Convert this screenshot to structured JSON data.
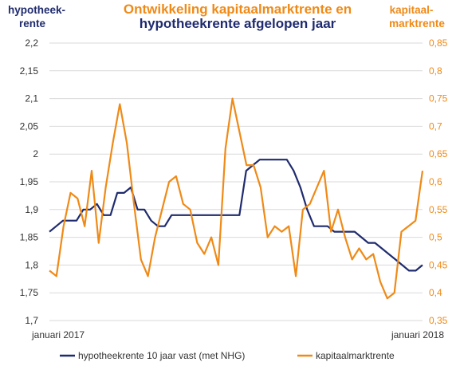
{
  "colors": {
    "navy": "#1f2b6e",
    "orange": "#ef8a17",
    "grid": "#d9d9d9",
    "text": "#333333"
  },
  "chart_data": {
    "type": "line",
    "title_line1": "Ontwikkeling kapitaalmarktrente en",
    "title_line2": "hypotheekrente afgelopen jaar",
    "left_axis_title": [
      "hypotheek-",
      "rente"
    ],
    "right_axis_title": [
      "kapitaal-",
      "marktrente"
    ],
    "x_labels": {
      "start": "januari 2017",
      "end": "januari 2018"
    },
    "x_range": [
      0,
      52
    ],
    "left_axis": {
      "ylim": [
        1.7,
        2.2
      ],
      "ticks": [
        1.7,
        1.75,
        1.8,
        1.85,
        1.9,
        1.95,
        2.0,
        2.05,
        2.1,
        2.15,
        2.2
      ],
      "tick_labels": [
        "1,7",
        "1,75",
        "1,8",
        "1,85",
        "1,9",
        "1,95",
        "2",
        "2,05",
        "2,1",
        "2,15",
        "2,2"
      ]
    },
    "right_axis": {
      "ylim": [
        0.35,
        0.85
      ],
      "ticks": [
        0.35,
        0.4,
        0.45,
        0.5,
        0.55,
        0.6,
        0.65,
        0.7,
        0.75,
        0.8,
        0.85
      ],
      "tick_labels": [
        "0,35",
        "0,4",
        "0,45",
        "0,5",
        "0,55",
        "0,6",
        "0,65",
        "0,7",
        "0,75",
        "0,8",
        "0,85"
      ]
    },
    "grid": true,
    "legend_position": "bottom",
    "series": [
      {
        "name": "hypotheekrente 10 jaar vast (met NHG)",
        "axis": "left",
        "color": "#1f2b6e",
        "values": [
          1.86,
          1.87,
          1.88,
          1.88,
          1.88,
          1.9,
          1.9,
          1.91,
          1.89,
          1.89,
          1.93,
          1.93,
          1.94,
          1.9,
          1.9,
          1.88,
          1.87,
          1.87,
          1.89,
          1.89,
          1.89,
          1.89,
          1.89,
          1.89,
          1.89,
          1.89,
          1.89,
          1.89,
          1.89,
          1.97,
          1.98,
          1.99,
          1.99,
          1.99,
          1.99,
          1.99,
          1.97,
          1.94,
          1.9,
          1.87,
          1.87,
          1.87,
          1.86,
          1.86,
          1.86,
          1.86,
          1.85,
          1.84,
          1.84,
          1.83,
          1.82,
          1.81,
          1.8,
          1.79,
          1.79,
          1.8
        ]
      },
      {
        "name": "kapitaalmarktrente",
        "axis": "right",
        "color": "#ef8a17",
        "values": [
          0.44,
          0.43,
          0.52,
          0.58,
          0.57,
          0.52,
          0.62,
          0.49,
          0.59,
          0.67,
          0.74,
          0.67,
          0.56,
          0.46,
          0.43,
          0.5,
          0.55,
          0.6,
          0.61,
          0.56,
          0.55,
          0.49,
          0.47,
          0.5,
          0.45,
          0.66,
          0.75,
          0.69,
          0.63,
          0.63,
          0.59,
          0.5,
          0.52,
          0.51,
          0.52,
          0.43,
          0.55,
          0.56,
          0.59,
          0.62,
          0.51,
          0.55,
          0.5,
          0.46,
          0.48,
          0.46,
          0.47,
          0.42,
          0.39,
          0.4,
          0.51,
          0.52,
          0.53,
          0.62
        ]
      }
    ]
  }
}
